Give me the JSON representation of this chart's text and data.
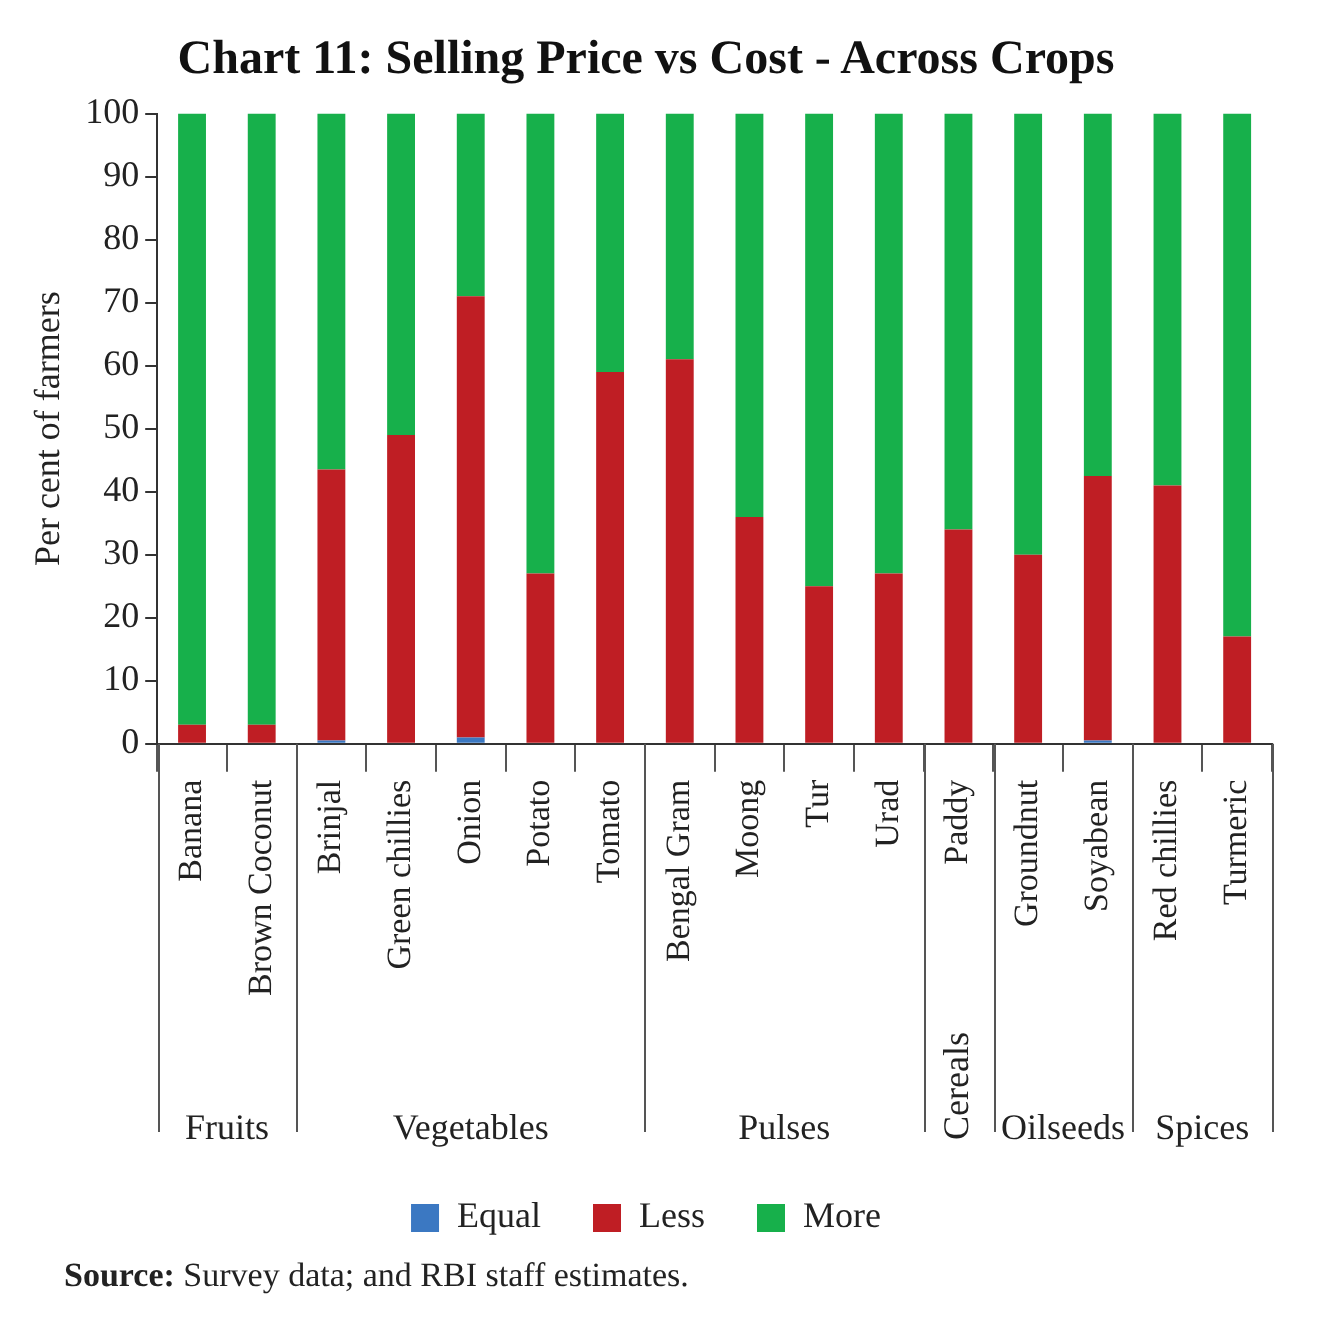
{
  "chart_data": {
    "type": "bar",
    "title": "Chart 11: Selling Price vs Cost - Across Crops",
    "ylabel": "Per cent of farmers",
    "categories": [
      "Banana",
      "Brown Coconut",
      "Brinjal",
      "Green chillies",
      "Onion",
      "Potato",
      "Tomato",
      "Bengal Gram",
      "Moong",
      "Tur",
      "Urad",
      "Paddy",
      "Groundnut",
      "Soyabean",
      "Red chillies",
      "Turmeric"
    ],
    "stacked": true,
    "series": [
      {
        "name": "Equal",
        "color": "#3b78c2",
        "values": [
          0,
          0,
          0.5,
          0,
          1,
          0,
          0,
          0,
          0,
          0,
          0,
          0,
          0,
          0.5,
          0,
          0
        ]
      },
      {
        "name": "Less",
        "color": "#bf1e24",
        "values": [
          3,
          3,
          43,
          49,
          70,
          27,
          59,
          61,
          36,
          25,
          27,
          34,
          30,
          42,
          41,
          17
        ]
      },
      {
        "name": "More",
        "color": "#17b04b",
        "values": [
          97,
          97,
          56.5,
          51,
          29,
          73,
          41,
          39,
          64,
          75,
          73,
          66,
          70,
          57.5,
          59,
          83
        ]
      }
    ],
    "ylim": [
      0,
      100
    ],
    "yticks": [
      0,
      10,
      20,
      30,
      40,
      50,
      60,
      70,
      80,
      90,
      100
    ],
    "grid": false,
    "legend": "bottom",
    "annotations": [
      "Fruits",
      "Vegetables",
      "Pulses",
      "Cereals",
      "Oilseeds",
      "Spices",
      "Source: Survey data; and RBI staff estimates."
    ]
  }
}
